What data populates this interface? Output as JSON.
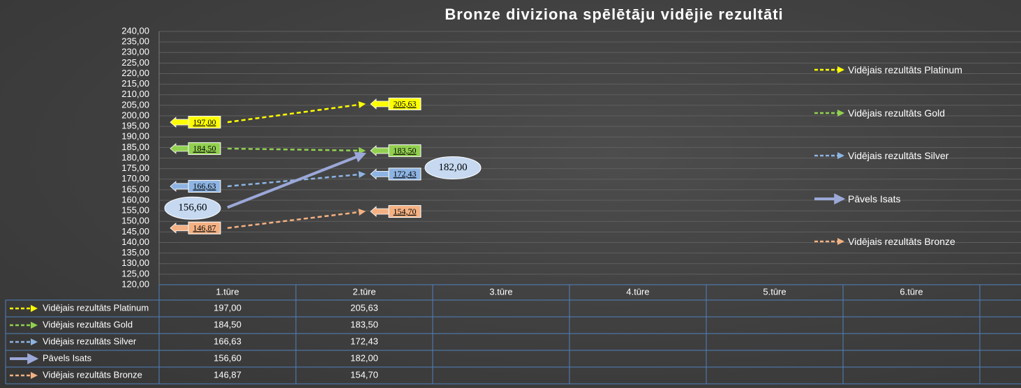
{
  "chart_data": {
    "type": "line",
    "title": "Bronze diviziona spēlētāju vidējie rezultāti",
    "categories": [
      "1.tūre",
      "2.tūre",
      "3.tūre",
      "4.tūre",
      "5.tūre",
      "6.tūre"
    ],
    "series": [
      {
        "name": "Vidējais rezultāts Platinum",
        "color": "#ffff00",
        "dashed": true,
        "values": [
          197.0,
          205.63,
          null,
          null,
          null,
          null
        ],
        "value_labels": [
          "197,00",
          "205,63",
          null,
          null,
          null,
          null
        ]
      },
      {
        "name": "Vidējais rezultāts Gold",
        "color": "#92d050",
        "dashed": true,
        "values": [
          184.5,
          183.5,
          null,
          null,
          null,
          null
        ],
        "value_labels": [
          "184,50",
          "183,50",
          null,
          null,
          null,
          null
        ]
      },
      {
        "name": "Vidējais rezultāts Silver",
        "color": "#8db4e2",
        "dashed": true,
        "values": [
          166.63,
          172.43,
          null,
          null,
          null,
          null
        ],
        "value_labels": [
          "166,63",
          "172,43",
          null,
          null,
          null,
          null
        ]
      },
      {
        "name": "Pāvels Isats",
        "color": "#9ba8d8",
        "dashed": false,
        "values": [
          156.6,
          182.0,
          null,
          null,
          null,
          null
        ],
        "value_labels": [
          "156,60",
          "182,00",
          null,
          null,
          null,
          null
        ]
      },
      {
        "name": "Vidējais rezultāts Bronze",
        "color": "#f4b183",
        "dashed": true,
        "values": [
          146.87,
          154.7,
          null,
          null,
          null,
          null
        ],
        "value_labels": [
          "146,87",
          "154,70",
          null,
          null,
          null,
          null
        ]
      }
    ],
    "ylim": [
      120,
      240
    ],
    "yticks": [
      {
        "value": 120,
        "label": "120,00"
      },
      {
        "value": 125,
        "label": "125,00"
      },
      {
        "value": 130,
        "label": "130,00"
      },
      {
        "value": 135,
        "label": "135,00"
      },
      {
        "value": 140,
        "label": "140,00"
      },
      {
        "value": 145,
        "label": "145,00"
      },
      {
        "value": 150,
        "label": "150,00"
      },
      {
        "value": 155,
        "label": "155,00"
      },
      {
        "value": 160,
        "label": "160,00"
      },
      {
        "value": 165,
        "label": "165,00"
      },
      {
        "value": 170,
        "label": "170,00"
      },
      {
        "value": 175,
        "label": "175,00"
      },
      {
        "value": 180,
        "label": "180,00"
      },
      {
        "value": 185,
        "label": "185,00"
      },
      {
        "value": 190,
        "label": "190,00"
      },
      {
        "value": 195,
        "label": "195,00"
      },
      {
        "value": 200,
        "label": "200,00"
      },
      {
        "value": 205,
        "label": "205,00"
      },
      {
        "value": 210,
        "label": "210,00"
      },
      {
        "value": 215,
        "label": "215,00"
      },
      {
        "value": 220,
        "label": "220,00"
      },
      {
        "value": 225,
        "label": "225,00"
      },
      {
        "value": 230,
        "label": "230,00"
      },
      {
        "value": 235,
        "label": "235,00"
      },
      {
        "value": 240,
        "label": "240,00"
      }
    ],
    "grid": true,
    "legend": "right",
    "data_table": true
  }
}
